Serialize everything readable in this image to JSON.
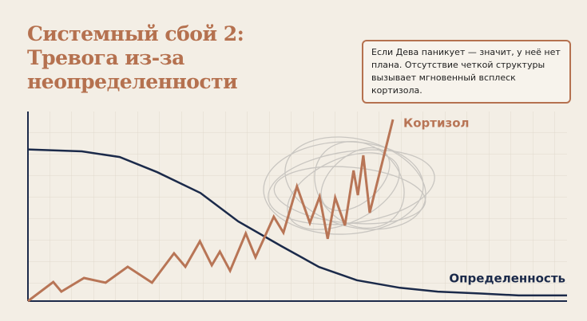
{
  "title_lines": [
    "Системный сбой 2:",
    "Тревога из-за",
    "неопределенности"
  ],
  "callout": [
    "Если Дева паникует — значит, у неё нет",
    "плана. Отсутствие четкой структуры",
    "вызывает мгновенный всплеск кортизола."
  ],
  "chart_data": {
    "type": "line",
    "xlim": [
      0,
      100
    ],
    "ylim": [
      0,
      100
    ],
    "grid": true,
    "series": [
      {
        "name": "Определенность",
        "color": "#1b2a4a",
        "x": [
          0,
          10,
          17,
          24,
          32,
          39,
          47,
          54,
          61,
          69,
          76,
          84,
          91,
          100
        ],
        "values": [
          80,
          79,
          76,
          68,
          57,
          42,
          29,
          18,
          11,
          7,
          5,
          4,
          3,
          3
        ]
      },
      {
        "name": "Кортизол",
        "color": "#b87556",
        "x": [
          0,
          4.7,
          6.2,
          10.4,
          14.4,
          18.5,
          23.0,
          27.1,
          29.2,
          31.9,
          34.1,
          35.6,
          37.5,
          40.4,
          42.2,
          45.6,
          47.4,
          49.9,
          52.3,
          54.1,
          55.6,
          57.0,
          58.8,
          60.4,
          61.2,
          62.2,
          63.4,
          67.7
        ],
        "values": [
          0,
          10.1,
          5.0,
          12.2,
          9.7,
          18.1,
          9.7,
          25.2,
          18.1,
          31.5,
          18.9,
          26.1,
          16.0,
          35.7,
          23.1,
          44.5,
          36.1,
          60.5,
          41.2,
          55.0,
          32.8,
          54.6,
          39.9,
          68.9,
          55.9,
          76.9,
          46.6,
          95.8
        ]
      }
    ]
  }
}
